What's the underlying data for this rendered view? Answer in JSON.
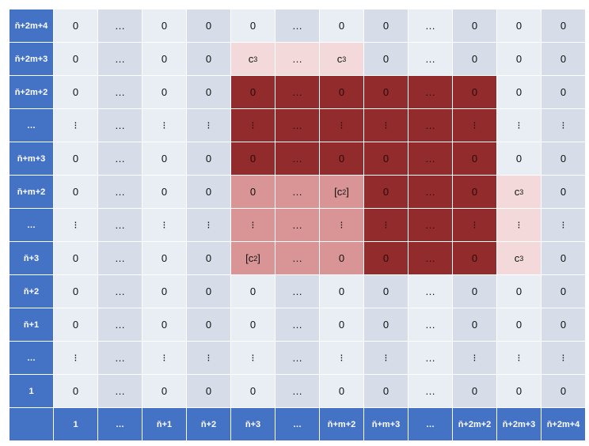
{
  "row_labels": [
    "ň+2m+4",
    "ň+2m+3",
    "ň+2m+2",
    "…",
    "ň+m+3",
    "ň+m+2",
    "…",
    "ň+3",
    "ň+2",
    "ň+1",
    "…",
    "1"
  ],
  "col_labels": [
    "1",
    "…",
    "ň+1",
    "ň+2",
    "ň+3",
    "…",
    "ň+m+2",
    "ň+m+3",
    "…",
    "ň+2m+2",
    "ň+2m+3",
    "ň+2m+4"
  ],
  "rows": [
    {
      "cells": [
        "0",
        "…",
        "0",
        "0",
        "0",
        "…",
        "0",
        "0",
        "…",
        "0",
        "0",
        "0"
      ],
      "shade": [
        "",
        "",
        "",
        "",
        "",
        "",
        "",
        "",
        "",
        "",
        "",
        ""
      ]
    },
    {
      "cells": [
        "0",
        "…",
        "0",
        "0",
        "c3",
        "…",
        "c3",
        "0",
        "…",
        "0",
        "0",
        "0"
      ],
      "shade": [
        "",
        "",
        "",
        "",
        "L",
        "L",
        "L",
        "",
        "",
        "",
        "",
        ""
      ]
    },
    {
      "cells": [
        "0",
        "…",
        "0",
        "0",
        "0",
        "…",
        "0",
        "0",
        "…",
        "0",
        "0",
        "0"
      ],
      "shade": [
        "",
        "",
        "",
        "",
        "D",
        "D",
        "D",
        "D",
        "D",
        "D",
        "",
        ""
      ]
    },
    {
      "cells": [
        "⁝",
        "…",
        "⁝",
        "⁝",
        "⁝",
        "…",
        "⁝",
        "⁝",
        "…",
        "⁝",
        "⁝",
        "⁝"
      ],
      "shade": [
        "",
        "",
        "",
        "",
        "D",
        "D",
        "D",
        "D",
        "D",
        "D",
        "",
        ""
      ]
    },
    {
      "cells": [
        "0",
        "…",
        "0",
        "0",
        "0",
        "…",
        "0",
        "0",
        "…",
        "0",
        "0",
        "0"
      ],
      "shade": [
        "",
        "",
        "",
        "",
        "D",
        "D",
        "D",
        "D",
        "D",
        "D",
        "",
        ""
      ]
    },
    {
      "cells": [
        "0",
        "…",
        "0",
        "0",
        "0",
        "…",
        "[c2]",
        "0",
        "…",
        "0",
        "c3",
        "0"
      ],
      "shade": [
        "",
        "",
        "",
        "",
        "M",
        "M",
        "M",
        "D",
        "D",
        "D",
        "L",
        ""
      ]
    },
    {
      "cells": [
        "⁝",
        "…",
        "⁝",
        "⁝",
        "⁝",
        "…",
        "⁝",
        "⁝",
        "…",
        "⁝",
        "⁝",
        "⁝"
      ],
      "shade": [
        "",
        "",
        "",
        "",
        "M",
        "M",
        "M",
        "D",
        "D",
        "D",
        "L",
        ""
      ]
    },
    {
      "cells": [
        "0",
        "…",
        "0",
        "0",
        "[c2]",
        "…",
        "0",
        "0",
        "…",
        "0",
        "c3",
        "0"
      ],
      "shade": [
        "",
        "",
        "",
        "",
        "M",
        "M",
        "M",
        "D",
        "D",
        "D",
        "L",
        ""
      ]
    },
    {
      "cells": [
        "0",
        "…",
        "0",
        "0",
        "0",
        "…",
        "0",
        "0",
        "…",
        "0",
        "0",
        "0"
      ],
      "shade": [
        "",
        "",
        "",
        "",
        "",
        "",
        "",
        "",
        "",
        "",
        "",
        ""
      ]
    },
    {
      "cells": [
        "0",
        "…",
        "0",
        "0",
        "0",
        "…",
        "0",
        "0",
        "…",
        "0",
        "0",
        "0"
      ],
      "shade": [
        "",
        "",
        "",
        "",
        "",
        "",
        "",
        "",
        "",
        "",
        "",
        ""
      ]
    },
    {
      "cells": [
        "⁝",
        "…",
        "⁝",
        "⁝",
        "⁝",
        "…",
        "⁝",
        "⁝",
        "…",
        "⁝",
        "⁝",
        "⁝"
      ],
      "shade": [
        "",
        "",
        "",
        "",
        "",
        "",
        "",
        "",
        "",
        "",
        "",
        ""
      ]
    },
    {
      "cells": [
        "0",
        "…",
        "0",
        "0",
        "0",
        "…",
        "0",
        "0",
        "…",
        "0",
        "0",
        "0"
      ],
      "shade": [
        "",
        "",
        "",
        "",
        "",
        "",
        "",
        "",
        "",
        "",
        "",
        ""
      ]
    }
  ],
  "colors": {
    "header": "#4472c4",
    "cell_light": "#e9edf4",
    "cell_alt": "#d6dde9",
    "shade_light": "#f3d9d9",
    "shade_mid": "#d99595",
    "shade_dark": "#922b2b"
  }
}
